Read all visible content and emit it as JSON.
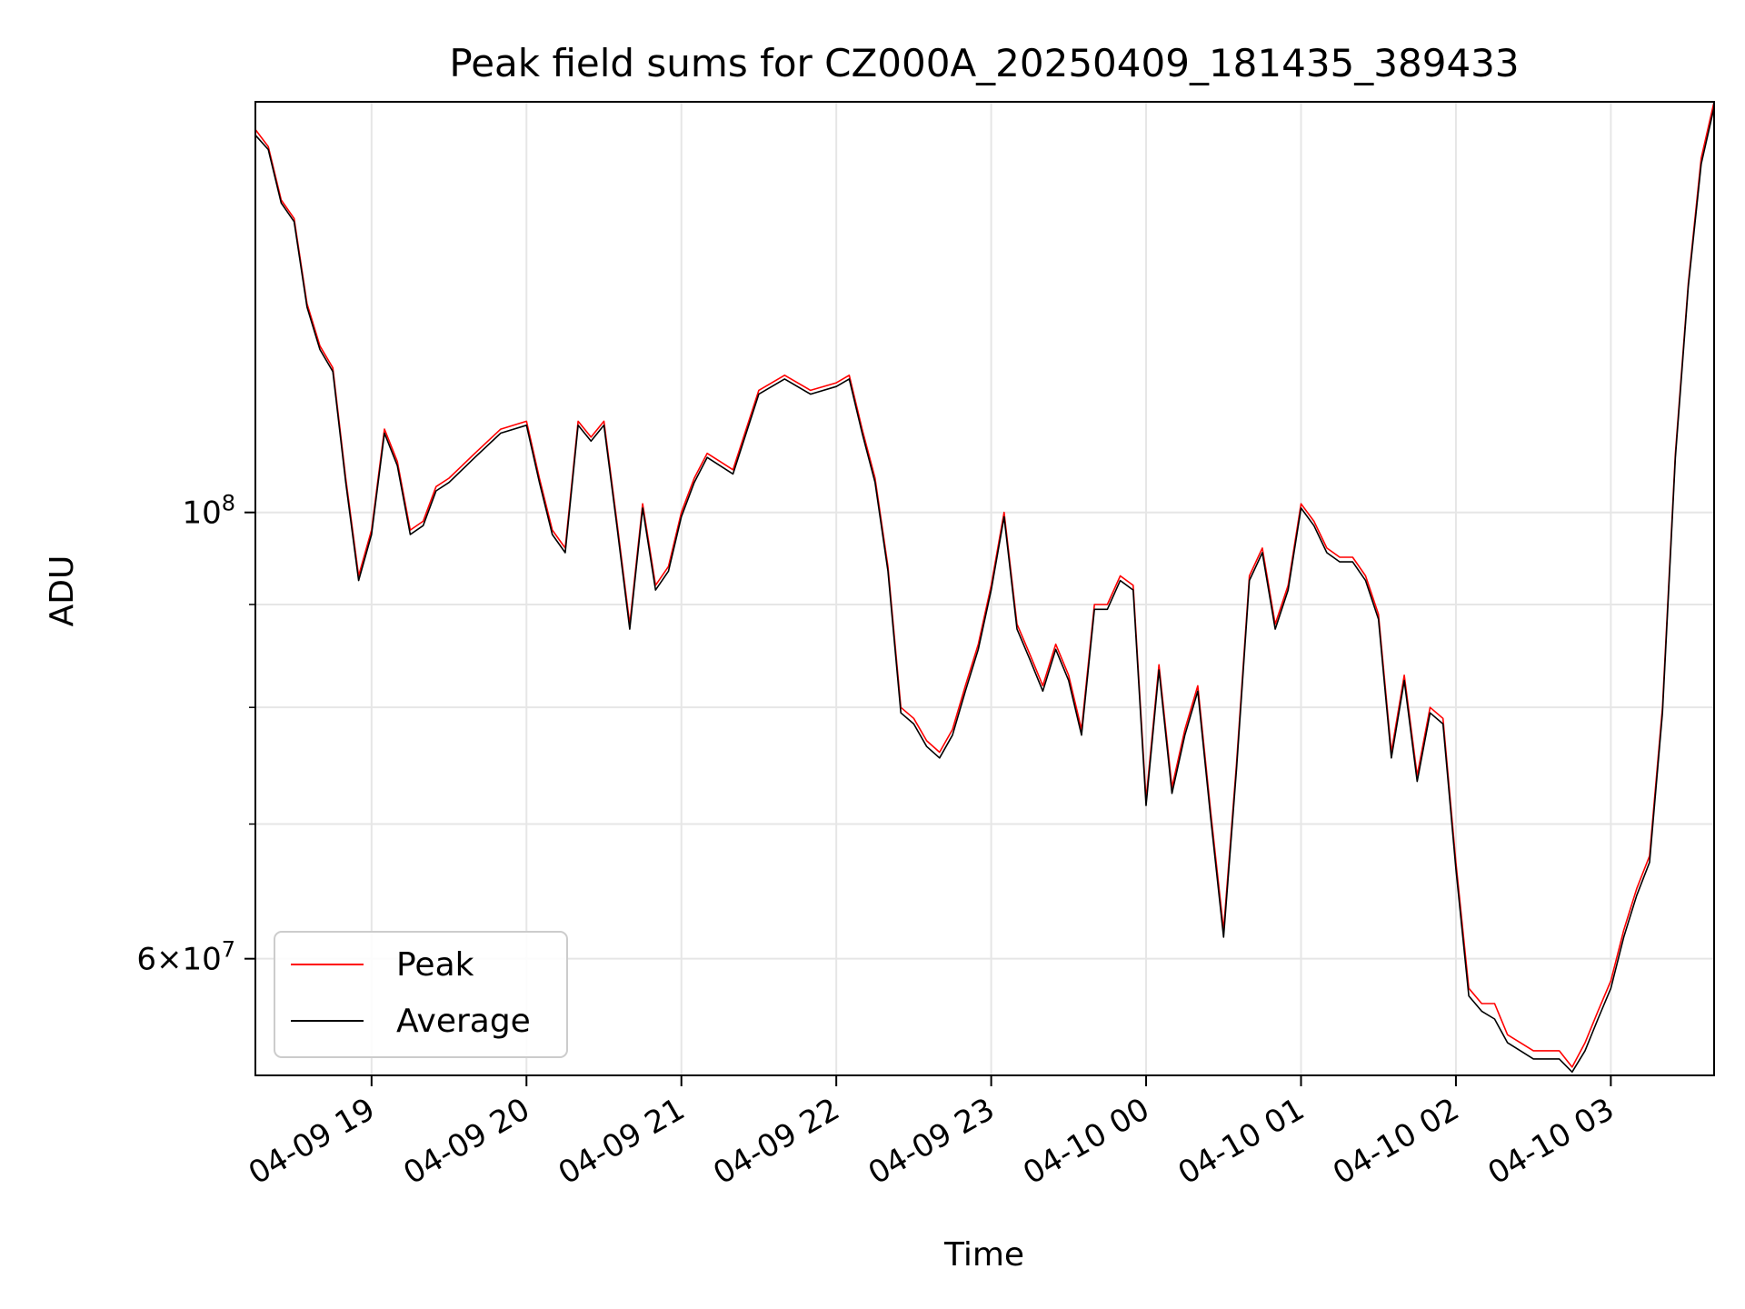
{
  "chart_data": {
    "type": "line",
    "title": "Peak field sums for CZ000A_20250409_181435_389433",
    "xlabel": "Time",
    "ylabel": "ADU",
    "yscale": "log",
    "ylim": [
      52500000,
      160000000
    ],
    "xlim": [
      "2025-04-09 18:15",
      "2025-04-10 03:40"
    ],
    "x_ticks": [
      "04-09 19",
      "04-09 20",
      "04-09 21",
      "04-09 22",
      "04-09 23",
      "04-10 00",
      "04-10 01",
      "04-10 02",
      "04-10 03"
    ],
    "y_ticks_major": [
      "10^8",
      "6×10^7"
    ],
    "y_ticks_major_values": [
      100000000,
      60000000
    ],
    "y_ticks_minor_values": [
      70000000,
      80000000,
      90000000
    ],
    "grid": true,
    "legend_position": "lower left",
    "series": [
      {
        "name": "Peak",
        "color": "#ff0000",
        "x": [
          "2025-04-09 18:15",
          "2025-04-09 18:20",
          "2025-04-09 18:25",
          "2025-04-09 18:30",
          "2025-04-09 18:35",
          "2025-04-09 18:40",
          "2025-04-09 18:45",
          "2025-04-09 18:50",
          "2025-04-09 18:55",
          "2025-04-09 19:00",
          "2025-04-09 19:05",
          "2025-04-09 19:10",
          "2025-04-09 19:15",
          "2025-04-09 19:20",
          "2025-04-09 19:25",
          "2025-04-09 19:30",
          "2025-04-09 19:40",
          "2025-04-09 19:50",
          "2025-04-09 20:00",
          "2025-04-09 20:05",
          "2025-04-09 20:10",
          "2025-04-09 20:15",
          "2025-04-09 20:20",
          "2025-04-09 20:25",
          "2025-04-09 20:30",
          "2025-04-09 20:35",
          "2025-04-09 20:40",
          "2025-04-09 20:45",
          "2025-04-09 20:50",
          "2025-04-09 20:55",
          "2025-04-09 21:00",
          "2025-04-09 21:05",
          "2025-04-09 21:10",
          "2025-04-09 21:15",
          "2025-04-09 21:20",
          "2025-04-09 21:30",
          "2025-04-09 21:40",
          "2025-04-09 21:50",
          "2025-04-09 22:00",
          "2025-04-09 22:05",
          "2025-04-09 22:10",
          "2025-04-09 22:15",
          "2025-04-09 22:20",
          "2025-04-09 22:25",
          "2025-04-09 22:30",
          "2025-04-09 22:35",
          "2025-04-09 22:40",
          "2025-04-09 22:45",
          "2025-04-09 22:50",
          "2025-04-09 22:55",
          "2025-04-09 23:00",
          "2025-04-09 23:05",
          "2025-04-09 23:10",
          "2025-04-09 23:15",
          "2025-04-09 23:20",
          "2025-04-09 23:25",
          "2025-04-09 23:30",
          "2025-04-09 23:35",
          "2025-04-09 23:40",
          "2025-04-09 23:45",
          "2025-04-09 23:50",
          "2025-04-09 23:55",
          "2025-04-10 00:00",
          "2025-04-10 00:05",
          "2025-04-10 00:10",
          "2025-04-10 00:15",
          "2025-04-10 00:20",
          "2025-04-10 00:25",
          "2025-04-10 00:30",
          "2025-04-10 00:35",
          "2025-04-10 00:40",
          "2025-04-10 00:45",
          "2025-04-10 00:50",
          "2025-04-10 00:55",
          "2025-04-10 01:00",
          "2025-04-10 01:05",
          "2025-04-10 01:10",
          "2025-04-10 01:15",
          "2025-04-10 01:20",
          "2025-04-10 01:25",
          "2025-04-10 01:30",
          "2025-04-10 01:35",
          "2025-04-10 01:40",
          "2025-04-10 01:45",
          "2025-04-10 01:50",
          "2025-04-10 01:55",
          "2025-04-10 02:00",
          "2025-04-10 02:05",
          "2025-04-10 02:10",
          "2025-04-10 02:15",
          "2025-04-10 02:20",
          "2025-04-10 02:25",
          "2025-04-10 02:30",
          "2025-04-10 02:35",
          "2025-04-10 02:40",
          "2025-04-10 02:45",
          "2025-04-10 02:50",
          "2025-04-10 02:55",
          "2025-04-10 03:00",
          "2025-04-10 03:05",
          "2025-04-10 03:10",
          "2025-04-10 03:15",
          "2025-04-10 03:20",
          "2025-04-10 03:25",
          "2025-04-10 03:30",
          "2025-04-10 03:35",
          "2025-04-10 03:40"
        ],
        "y": [
          155000000,
          152000000,
          143000000,
          140000000,
          127000000,
          121000000,
          118000000,
          104000000,
          93000000,
          98000000,
          110000000,
          106000000,
          98000000,
          99000000,
          103000000,
          104000000,
          107000000,
          110000000,
          111000000,
          104000000,
          98000000,
          96000000,
          111000000,
          109000000,
          111000000,
          99000000,
          88000000,
          101000000,
          92000000,
          94000000,
          100000000,
          104000000,
          107000000,
          106000000,
          105000000,
          115000000,
          117000000,
          115000000,
          116000000,
          117000000,
          110000000,
          104000000,
          94000000,
          80000000,
          79000000,
          77000000,
          76000000,
          78000000,
          82000000,
          86000000,
          92000000,
          100000000,
          88000000,
          85000000,
          82000000,
          86000000,
          83000000,
          78000000,
          90000000,
          90000000,
          93000000,
          92000000,
          72000000,
          84000000,
          73000000,
          78000000,
          82000000,
          71000000,
          62000000,
          75000000,
          93000000,
          96000000,
          88000000,
          92000000,
          101000000,
          99000000,
          96000000,
          95000000,
          95000000,
          93000000,
          89000000,
          76000000,
          83000000,
          74000000,
          80000000,
          79000000,
          67000000,
          58000000,
          57000000,
          57000000,
          55000000,
          54500000,
          54000000,
          54000000,
          54000000,
          53000000,
          54500000,
          56500000,
          58500000,
          62000000,
          65000000,
          67500000,
          80000000,
          107000000,
          130000000,
          150000000,
          160000000
        ]
      },
      {
        "name": "Average",
        "color": "#000000",
        "x": [
          "2025-04-09 18:15",
          "2025-04-09 18:20",
          "2025-04-09 18:25",
          "2025-04-09 18:30",
          "2025-04-09 18:35",
          "2025-04-09 18:40",
          "2025-04-09 18:45",
          "2025-04-09 18:50",
          "2025-04-09 18:55",
          "2025-04-09 19:00",
          "2025-04-09 19:05",
          "2025-04-09 19:10",
          "2025-04-09 19:15",
          "2025-04-09 19:20",
          "2025-04-09 19:25",
          "2025-04-09 19:30",
          "2025-04-09 19:40",
          "2025-04-09 19:50",
          "2025-04-09 20:00",
          "2025-04-09 20:05",
          "2025-04-09 20:10",
          "2025-04-09 20:15",
          "2025-04-09 20:20",
          "2025-04-09 20:25",
          "2025-04-09 20:30",
          "2025-04-09 20:35",
          "2025-04-09 20:40",
          "2025-04-09 20:45",
          "2025-04-09 20:50",
          "2025-04-09 20:55",
          "2025-04-09 21:00",
          "2025-04-09 21:05",
          "2025-04-09 21:10",
          "2025-04-09 21:15",
          "2025-04-09 21:20",
          "2025-04-09 21:30",
          "2025-04-09 21:40",
          "2025-04-09 21:50",
          "2025-04-09 22:00",
          "2025-04-09 22:05",
          "2025-04-09 22:10",
          "2025-04-09 22:15",
          "2025-04-09 22:20",
          "2025-04-09 22:25",
          "2025-04-09 22:30",
          "2025-04-09 22:35",
          "2025-04-09 22:40",
          "2025-04-09 22:45",
          "2025-04-09 22:50",
          "2025-04-09 22:55",
          "2025-04-09 23:00",
          "2025-04-09 23:05",
          "2025-04-09 23:10",
          "2025-04-09 23:15",
          "2025-04-09 23:20",
          "2025-04-09 23:25",
          "2025-04-09 23:30",
          "2025-04-09 23:35",
          "2025-04-09 23:40",
          "2025-04-09 23:45",
          "2025-04-09 23:50",
          "2025-04-09 23:55",
          "2025-04-10 00:00",
          "2025-04-10 00:05",
          "2025-04-10 00:10",
          "2025-04-10 00:15",
          "2025-04-10 00:20",
          "2025-04-10 00:25",
          "2025-04-10 00:30",
          "2025-04-10 00:35",
          "2025-04-10 00:40",
          "2025-04-10 00:45",
          "2025-04-10 00:50",
          "2025-04-10 00:55",
          "2025-04-10 01:00",
          "2025-04-10 01:05",
          "2025-04-10 01:10",
          "2025-04-10 01:15",
          "2025-04-10 01:20",
          "2025-04-10 01:25",
          "2025-04-10 01:30",
          "2025-04-10 01:35",
          "2025-04-10 01:40",
          "2025-04-10 01:45",
          "2025-04-10 01:50",
          "2025-04-10 01:55",
          "2025-04-10 02:00",
          "2025-04-10 02:05",
          "2025-04-10 02:10",
          "2025-04-10 02:15",
          "2025-04-10 02:20",
          "2025-04-10 02:25",
          "2025-04-10 02:30",
          "2025-04-10 02:35",
          "2025-04-10 02:40",
          "2025-04-10 02:45",
          "2025-04-10 02:50",
          "2025-04-10 02:55",
          "2025-04-10 03:00",
          "2025-04-10 03:05",
          "2025-04-10 03:10",
          "2025-04-10 03:15",
          "2025-04-10 03:20",
          "2025-04-10 03:25",
          "2025-04-10 03:30",
          "2025-04-10 03:35",
          "2025-04-10 03:40"
        ],
        "y": [
          154000000,
          151500000,
          142500000,
          139500000,
          126500000,
          120500000,
          117500000,
          103500000,
          92500000,
          97500000,
          109500000,
          105500000,
          97500000,
          98500000,
          102500000,
          103500000,
          106500000,
          109500000,
          110500000,
          103500000,
          97500000,
          95500000,
          110500000,
          108500000,
          110500000,
          98500000,
          87500000,
          100500000,
          91500000,
          93500000,
          99500000,
          103500000,
          106500000,
          105500000,
          104500000,
          114500000,
          116500000,
          114500000,
          115500000,
          116500000,
          109500000,
          103500000,
          93500000,
          79500000,
          78500000,
          76500000,
          75500000,
          77500000,
          81500000,
          85500000,
          91500000,
          99500000,
          87500000,
          84500000,
          81500000,
          85500000,
          82500000,
          77500000,
          89500000,
          89500000,
          92500000,
          91500000,
          71500000,
          83500000,
          72500000,
          77500000,
          81500000,
          70500000,
          61500000,
          74500000,
          92500000,
          95500000,
          87500000,
          91500000,
          100500000,
          98500000,
          95500000,
          94500000,
          94500000,
          92500000,
          88500000,
          75500000,
          82500000,
          73500000,
          79500000,
          78500000,
          66500000,
          57500000,
          56500000,
          56000000,
          54500000,
          54000000,
          53500000,
          53500000,
          53500000,
          52700000,
          54000000,
          56000000,
          58000000,
          61500000,
          64500000,
          67000000,
          79500000,
          106500000,
          129500000,
          149000000,
          159000000
        ]
      }
    ]
  }
}
